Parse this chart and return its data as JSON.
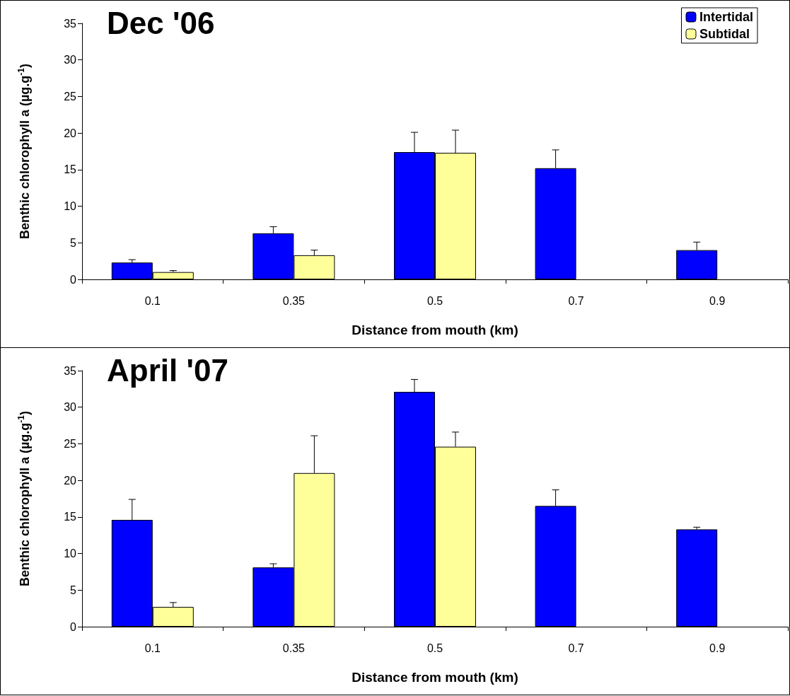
{
  "chart_data": [
    {
      "type": "bar",
      "title": "Dec '06",
      "xlabel": "Distance from mouth (km)",
      "ylabel": "Benthic chlorophyll a (µg.g$^{-1}$)",
      "categories": [
        "0.1",
        "0.35",
        "0.5",
        "0.7",
        "0.9"
      ],
      "ylim": [
        0,
        35
      ],
      "yticks": [
        0,
        5,
        10,
        15,
        20,
        25,
        30,
        35
      ],
      "grid": false,
      "legend": "top right",
      "series": [
        {
          "name": "Intertidal",
          "color": "#0000ff",
          "values": [
            2.3,
            6.3,
            17.4,
            15.2,
            4.0
          ],
          "errors": [
            0.4,
            0.9,
            2.7,
            2.5,
            1.1
          ]
        },
        {
          "name": "Subtidal",
          "color": "#ffff99",
          "values": [
            1.0,
            3.3,
            17.3,
            null,
            null
          ],
          "errors": [
            0.2,
            0.7,
            3.1,
            null,
            null
          ]
        }
      ]
    },
    {
      "type": "bar",
      "title": "April '07",
      "xlabel": "Distance from mouth (km)",
      "ylabel": "Benthic chlorophyll a (µg.g$^{-1}$)",
      "categories": [
        "0.1",
        "0.35",
        "0.5",
        "0.7",
        "0.9"
      ],
      "ylim": [
        0,
        35
      ],
      "yticks": [
        0,
        5,
        10,
        15,
        20,
        25,
        30,
        35
      ],
      "grid": false,
      "series": [
        {
          "color": "#0000ff",
          "values": [
            14.6,
            8.1,
            32.1,
            16.5,
            13.3
          ],
          "errors": [
            2.8,
            0.5,
            1.7,
            2.2,
            0.3
          ]
        },
        {
          "color": "#ffff99",
          "values": [
            2.7,
            21.0,
            24.6,
            null,
            null
          ],
          "errors": [
            0.6,
            5.1,
            2.0,
            null,
            null
          ]
        }
      ]
    }
  ]
}
